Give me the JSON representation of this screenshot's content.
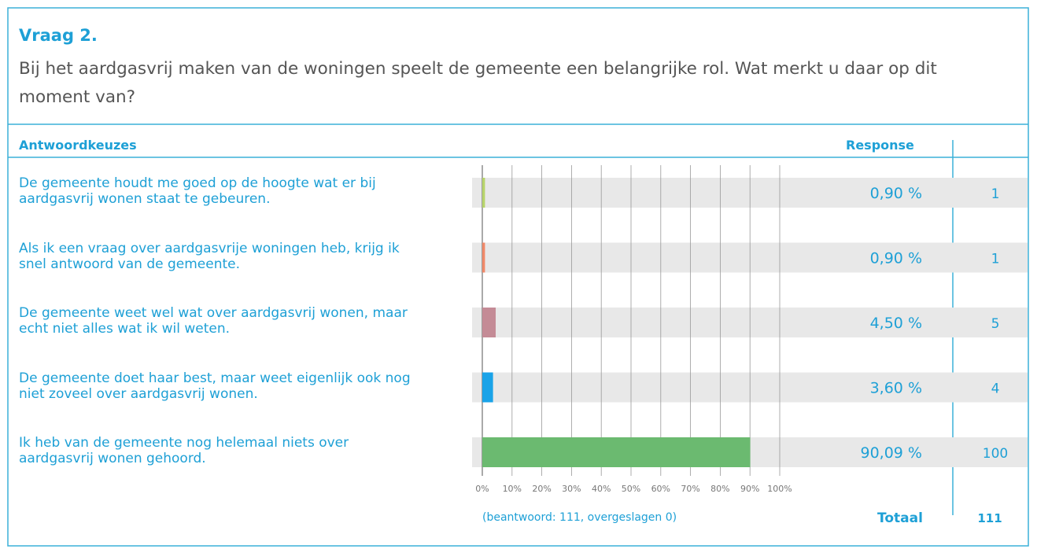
{
  "title": "Vraag 2.",
  "question": "Bij het aardgasvrij maken van de woningen speelt de gemeente een belangrijke rol. Wat merkt u daar op dit moment van?",
  "header": {
    "choices": "Antwoordkeuzes",
    "response": "Response"
  },
  "chart_data": {
    "type": "bar",
    "categories": [
      "De gemeente houdt me goed op de hoogte wat er bij aardgasvrij wonen staat te gebeuren.",
      "Als ik een vraag over aardgasvrije woningen heb, krijg ik snel antwoord van de gemeente.",
      "De gemeente weet wel wat over aardgasvrij wonen, maar echt niet alles wat ik wil weten.",
      "De gemeente doet haar best, maar weet eigenlijk ook nog niet zoveel over aardgasvrij wonen.",
      "Ik heb van de gemeente nog helemaal niets over aardgasvrij wonen gehoord."
    ],
    "values": [
      0.9,
      0.9,
      4.5,
      3.6,
      90.09
    ],
    "value_labels": [
      "0,90 %",
      "0,90 %",
      "4,50 %",
      "3,60 %",
      "90,09 %"
    ],
    "counts": [
      1,
      1,
      5,
      4,
      100
    ],
    "colors": [
      "#b7d46a",
      "#f08868",
      "#c48b96",
      "#1aa3e8",
      "#6bba70"
    ],
    "xlim": [
      0,
      100
    ],
    "xticks": [
      {
        "value": 0,
        "label": "0%"
      },
      {
        "value": 10,
        "label": "10%"
      },
      {
        "value": 20,
        "label": "20%"
      },
      {
        "value": 30,
        "label": "30%"
      },
      {
        "value": 40,
        "label": "40%"
      },
      {
        "value": 50,
        "label": "50%"
      },
      {
        "value": 60,
        "label": "60%"
      },
      {
        "value": 70,
        "label": "70%"
      },
      {
        "value": 80,
        "label": "80%"
      },
      {
        "value": 90,
        "label": "90%"
      },
      {
        "value": 100,
        "label": "100%"
      }
    ],
    "grid": true
  },
  "note": "(beantwoord: 111, overgeslagen 0)",
  "total_label": "Totaal",
  "total": 111
}
